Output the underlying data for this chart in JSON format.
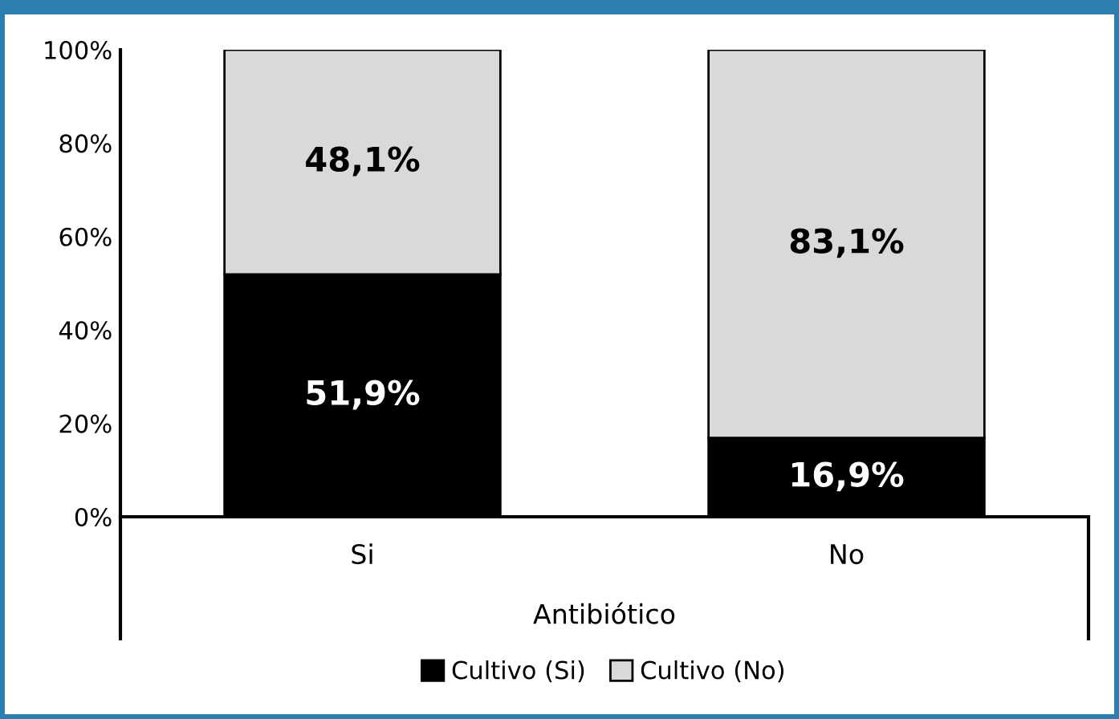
{
  "chart_data": {
    "type": "bar",
    "stacked": true,
    "xlabel": "Antibiótico",
    "categories": [
      "Si",
      "No"
    ],
    "series": [
      {
        "name": "Cultivo (Si)",
        "color": "#000000",
        "values": [
          51.9,
          16.9
        ],
        "value_labels": [
          "51,9%",
          "16,9%"
        ]
      },
      {
        "name": "Cultivo (No)",
        "color": "#d9d9d9",
        "values": [
          48.1,
          83.1
        ],
        "value_labels": [
          "48,1%",
          "83,1%"
        ]
      }
    ],
    "ylim": [
      0,
      100
    ],
    "yticks": [
      {
        "value": 0,
        "label": "0%"
      },
      {
        "value": 20,
        "label": "20%"
      },
      {
        "value": 40,
        "label": "40%"
      },
      {
        "value": 60,
        "label": "60%"
      },
      {
        "value": 80,
        "label": "80%"
      },
      {
        "value": 100,
        "label": "100%"
      }
    ],
    "grid": false,
    "legend": "bottom"
  }
}
